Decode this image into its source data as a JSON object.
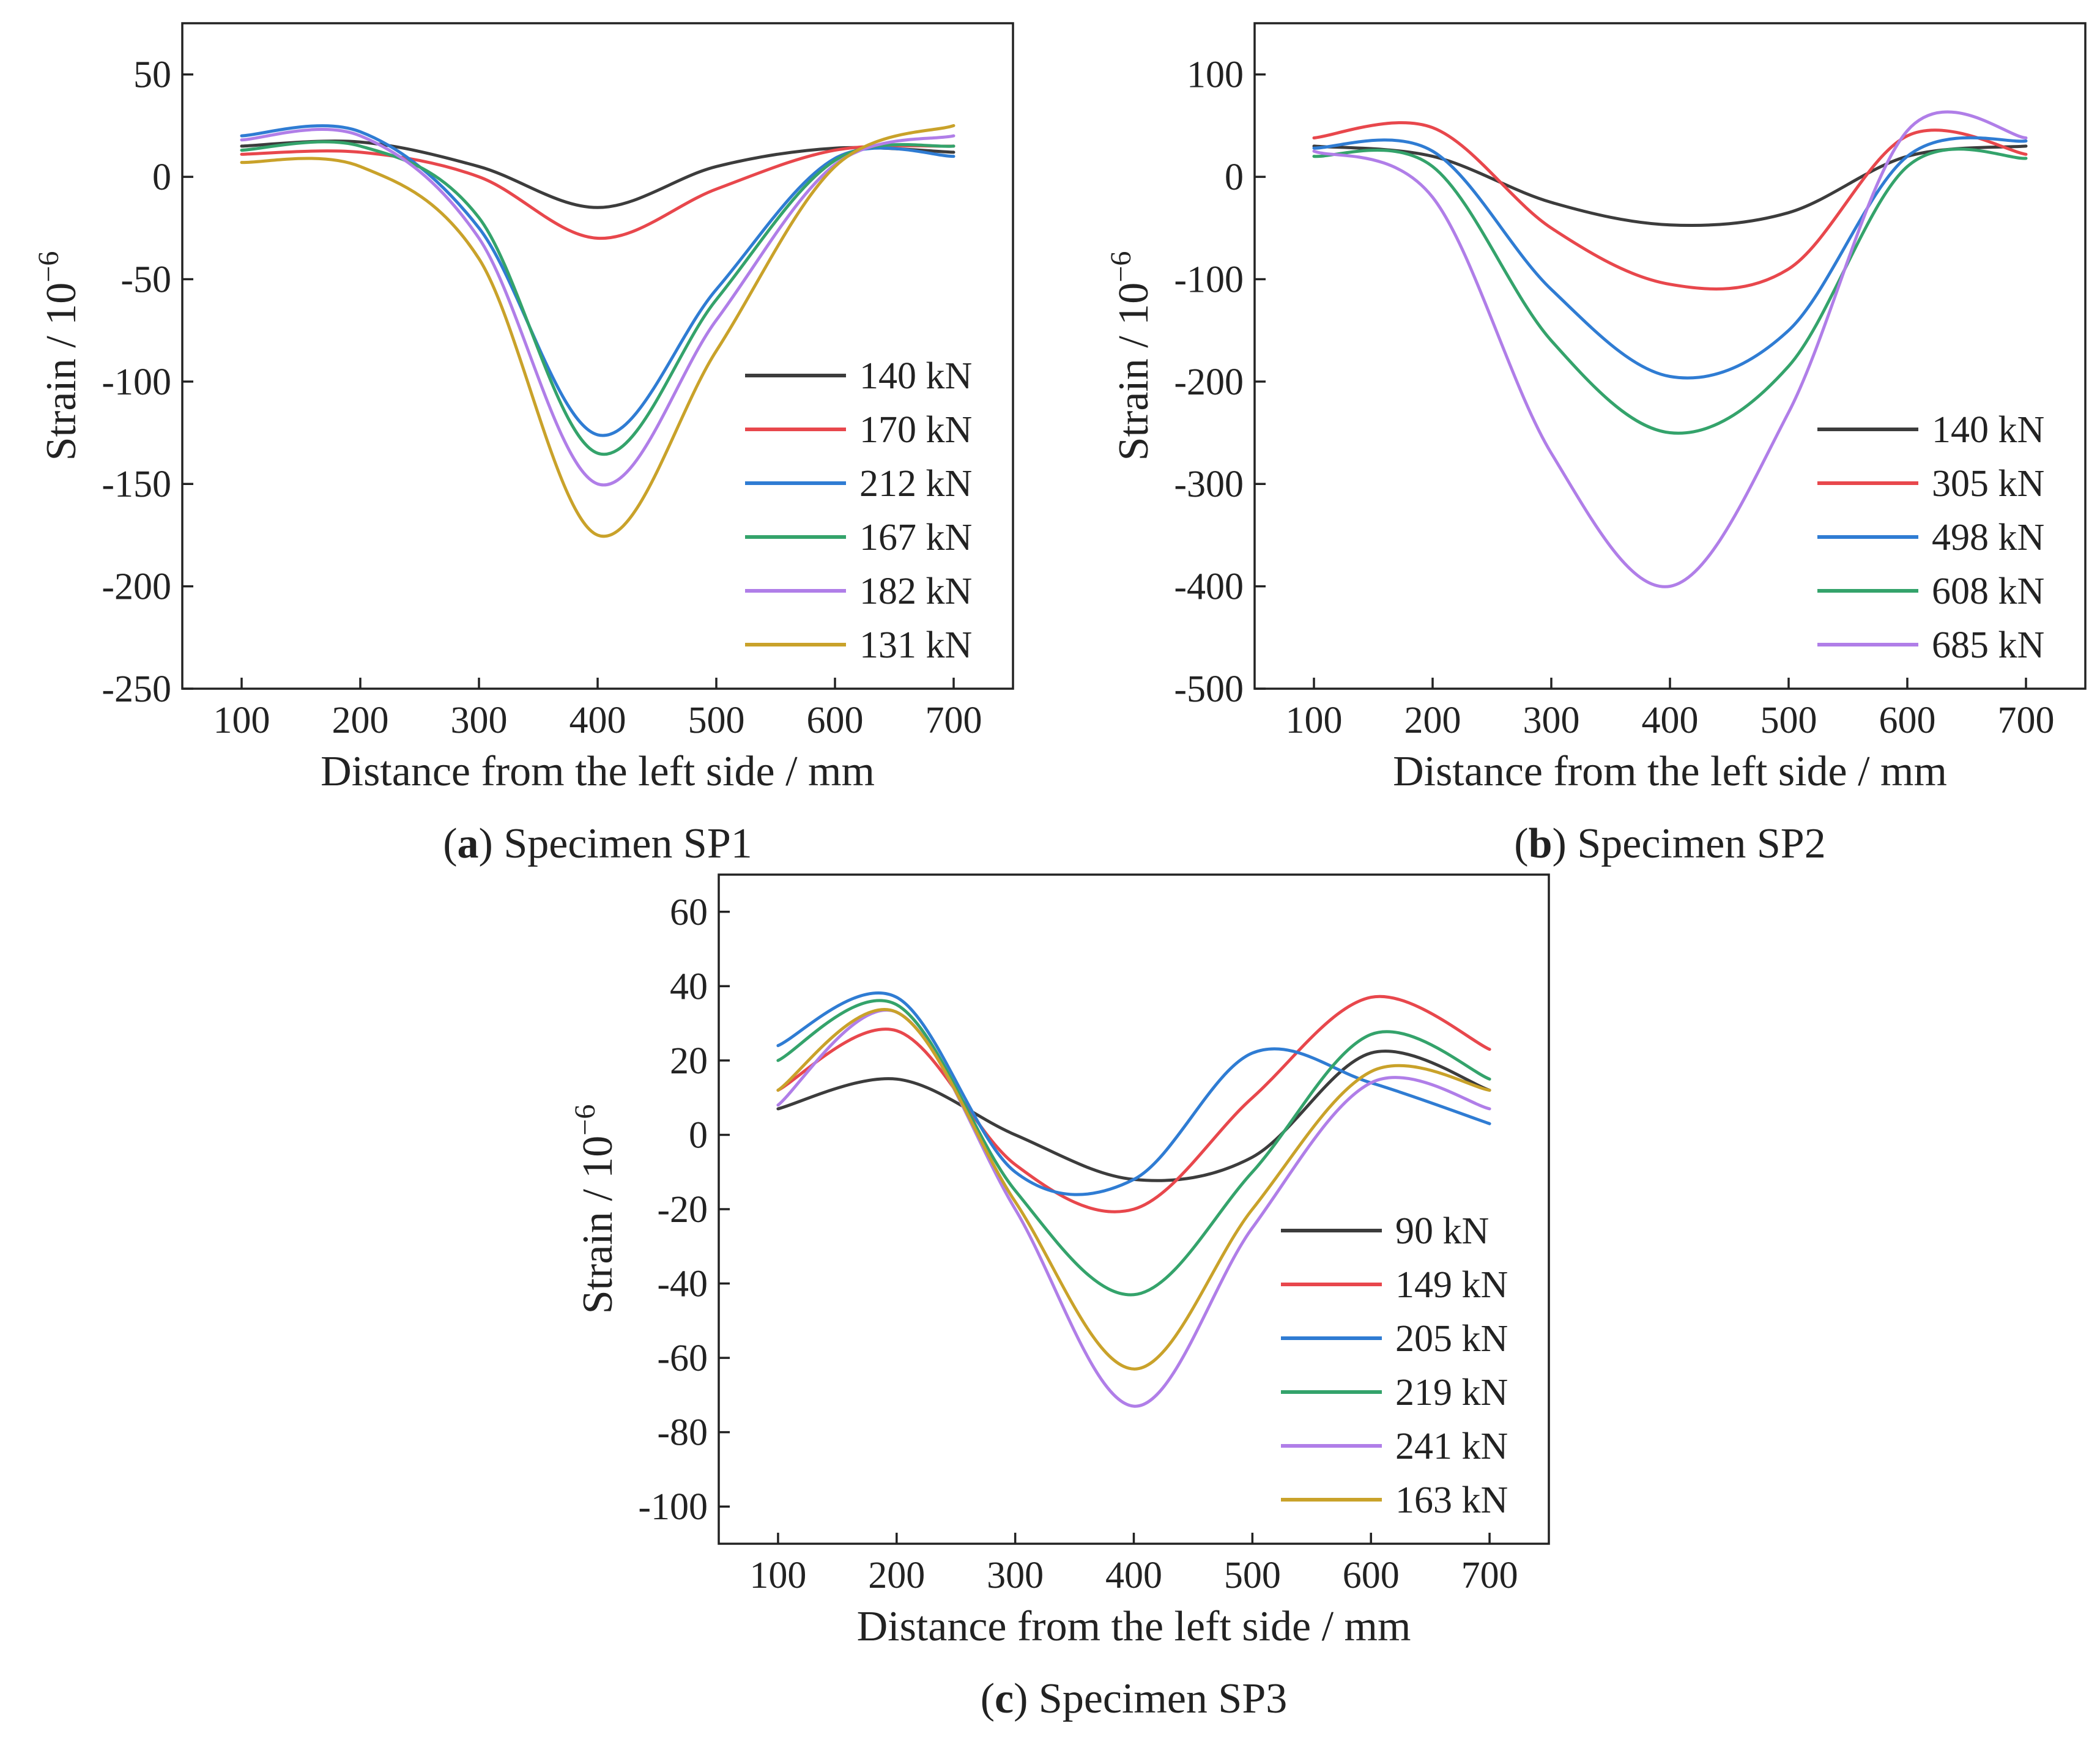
{
  "chart_data": [
    {
      "type": "line",
      "panel": "a",
      "caption_letter": "a",
      "caption_text": " Specimen SP1",
      "xlabel": "Distance from the left side / mm",
      "ylabel_main": "Strain / 10",
      "ylabel_exp": "−6",
      "xlim": [
        50,
        750
      ],
      "ylim": [
        -250,
        75
      ],
      "xticks": [
        100,
        200,
        300,
        400,
        500,
        600,
        700
      ],
      "yticks": [
        50,
        0,
        -50,
        -100,
        -150,
        -200,
        -250
      ],
      "legend_position": "right",
      "x": [
        100,
        200,
        300,
        400,
        500,
        600,
        700
      ],
      "series": [
        {
          "name": "140 kN",
          "color": "#3c3c3c",
          "values": [
            15,
            17,
            5,
            -15,
            5,
            14,
            12
          ]
        },
        {
          "name": "170 kN",
          "color": "#e8474c",
          "values": [
            11,
            12,
            0,
            -30,
            -6,
            13,
            15
          ]
        },
        {
          "name": "212 kN",
          "color": "#2f7cd3",
          "values": [
            20,
            22,
            -25,
            -126,
            -55,
            9,
            10
          ]
        },
        {
          "name": "167 kN",
          "color": "#34a36b",
          "values": [
            13,
            15,
            -20,
            -135,
            -60,
            8,
            15
          ]
        },
        {
          "name": "182 kN",
          "color": "#b07ee8",
          "values": [
            18,
            20,
            -30,
            -150,
            -70,
            6,
            20
          ]
        },
        {
          "name": "131 kN",
          "color": "#c9a22a",
          "values": [
            7,
            5,
            -40,
            -175,
            -85,
            5,
            25
          ]
        }
      ]
    },
    {
      "type": "line",
      "panel": "b",
      "caption_letter": "b",
      "caption_text": " Specimen SP2",
      "xlabel": "Distance from the left side / mm",
      "ylabel_main": "Strain / 10",
      "ylabel_exp": "−6",
      "xlim": [
        50,
        750
      ],
      "ylim": [
        -500,
        150
      ],
      "xticks": [
        100,
        200,
        300,
        400,
        500,
        600,
        700
      ],
      "yticks": [
        100,
        0,
        -100,
        -200,
        -300,
        -400,
        -500
      ],
      "legend_position": "right",
      "x": [
        100,
        200,
        300,
        400,
        500,
        600,
        700
      ],
      "series": [
        {
          "name": "140 kN",
          "color": "#3c3c3c",
          "values": [
            30,
            20,
            -25,
            -47,
            -35,
            20,
            30
          ]
        },
        {
          "name": "305 kN",
          "color": "#e8474c",
          "values": [
            38,
            48,
            -50,
            -105,
            -90,
            40,
            22
          ]
        },
        {
          "name": "498 kN",
          "color": "#2f7cd3",
          "values": [
            28,
            25,
            -110,
            -195,
            -150,
            20,
            35
          ]
        },
        {
          "name": "608 kN",
          "color": "#34a36b",
          "values": [
            20,
            10,
            -160,
            -250,
            -185,
            10,
            18
          ]
        },
        {
          "name": "685 kN",
          "color": "#b07ee8",
          "values": [
            25,
            -20,
            -270,
            -400,
            -230,
            45,
            38
          ]
        }
      ]
    },
    {
      "type": "line",
      "panel": "c",
      "caption_letter": "c",
      "caption_text": " Specimen SP3",
      "xlabel": "Distance from the left side / mm",
      "ylabel_main": "Strain / 10",
      "ylabel_exp": "−6",
      "xlim": [
        50,
        750
      ],
      "ylim": [
        -110,
        70
      ],
      "xticks": [
        100,
        200,
        300,
        400,
        500,
        600,
        700
      ],
      "yticks": [
        60,
        40,
        20,
        0,
        -20,
        -40,
        -60,
        -80,
        -100
      ],
      "legend_position": "right",
      "x": [
        100,
        200,
        300,
        400,
        500,
        600,
        700
      ],
      "series": [
        {
          "name": "90 kN",
          "color": "#3c3c3c",
          "values": [
            7,
            15,
            0,
            -12,
            -6,
            22,
            12
          ]
        },
        {
          "name": "149 kN",
          "color": "#e8474c",
          "values": [
            12,
            28,
            -8,
            -20,
            10,
            37,
            23
          ]
        },
        {
          "name": "205 kN",
          "color": "#2f7cd3",
          "values": [
            24,
            37,
            -10,
            -12,
            22,
            14,
            3
          ]
        },
        {
          "name": "219 kN",
          "color": "#34a36b",
          "values": [
            20,
            35,
            -15,
            -43,
            -10,
            27,
            15
          ]
        },
        {
          "name": "241 kN",
          "color": "#b07ee8",
          "values": [
            8,
            33,
            -20,
            -73,
            -25,
            14,
            7
          ]
        },
        {
          "name": "163 kN",
          "color": "#c9a22a",
          "values": [
            12,
            33,
            -18,
            -63,
            -20,
            17,
            12
          ]
        }
      ]
    }
  ]
}
